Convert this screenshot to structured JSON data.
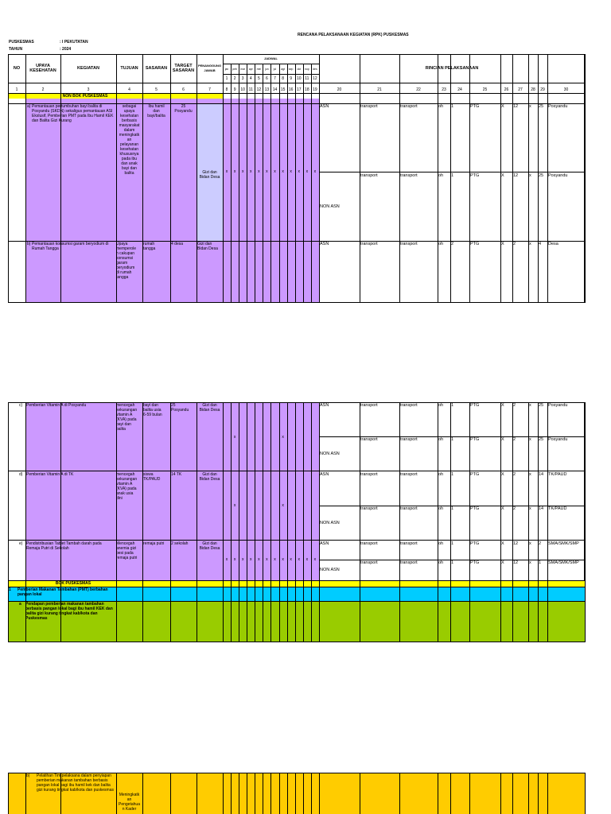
{
  "header": {
    "title": "RENCANA PELAKSANAAN KEGIATAN (RPK) PUSKESMAS",
    "puskesmas_label": "PUSKESMAS",
    "puskesmas_value": ": I PEKUTATAN",
    "tahun_label": "TAHUN",
    "tahun_value": ": 2024"
  },
  "columns": {
    "no": "NO",
    "upaya": "UPAYA KESEHATAN",
    "kegiatan": "KEGIATAN",
    "tujuan": "TUJUAN",
    "sasaran": "SASARAN",
    "target": "TARGET SASARAN",
    "pj": "PENANGGUNG JAWAB",
    "jadwal": "JADWAL",
    "rincian": "RINCIAN PELAKSANAAN",
    "months": [
      "jan",
      "peb",
      "mar",
      "apr",
      "mei",
      "jun",
      "jul",
      "agt",
      "sep",
      "okt",
      "nop",
      "des"
    ],
    "month_nums": [
      "1",
      "2",
      "3",
      "4",
      "5",
      "6",
      "7",
      "8",
      "9",
      "10",
      "11",
      "12"
    ],
    "index_left": [
      "1",
      "2",
      "3",
      "4",
      "5",
      "6",
      "7"
    ],
    "index_months": [
      "8",
      "9",
      "10",
      "11",
      "12",
      "13",
      "14",
      "15",
      "16",
      "17",
      "18",
      "19"
    ],
    "index_right": [
      "20",
      "21",
      "22",
      "23",
      "24",
      "25",
      "26",
      "27",
      "28",
      "29",
      "30"
    ]
  },
  "section_non_bok": "NON BOK PUSKESMAS",
  "section_bok": "BOK PUSKESMAS",
  "row_a": {
    "letter": "a)",
    "kegiatan": "Pemantauan pertumbuhan bayi balita di Posyandu (SKDN) sekaligus pemantauan ASI Ekslusif, Pemberian PMT pada Ibu Hamil KEK dan Balita Gizi Kurang",
    "tujuan": "sebagai\nupaya\nkesehatan\nberbasis\nmasyarakat\ndalam\nmeningkatk\nan\npelayanan\nkesehatan\nkhususnya\npada ibu\ndan anak\nbayi dan\nbalita",
    "sasaran": "Ibu hamil\ndan\nbayi/balita",
    "target": "25\nPosyandu",
    "pj": "Gizi dan\nBidan Desa",
    "marks": [
      "x",
      "x",
      "x",
      "x",
      "x",
      "x",
      "x",
      "x",
      "x",
      "x",
      "x",
      "x"
    ],
    "r1": {
      "c20": "ASN",
      "c21": "transport",
      "c22": "transport",
      "c23": "oh",
      "c24": "1",
      "c25": "PTG",
      "c26": "X",
      "c27": "12",
      "c28": "x",
      "c29": "25",
      "c30": "Posyandu"
    },
    "r2": {
      "c20": "NON ASN",
      "c21": "transport",
      "c22": "transport",
      "c23": "oh",
      "c24": "1",
      "c25": "PTG",
      "c26": "X",
      "c27": "12",
      "c28": "x",
      "c29": "25",
      "c30": "Posyandu"
    }
  },
  "row_b": {
    "letter": "b)",
    "kegiatan": "Pemantauan konsumsi garam beryodium di Rumah Tangga",
    "tujuan": "Upaya\nmemperole\nh cakupan\nkonsumsi\ngaram\nberyodium\ndi rumah\ntangga",
    "sasaran": "rumah\ntangga",
    "target": "4 desa",
    "pj": "Gizi dan\nBidan Desa",
    "r1": {
      "c20": "ASN",
      "c21": "transport",
      "c22": "transport",
      "c23": "oh",
      "c24": "2",
      "c25": "PTG",
      "c26": "X",
      "c27": "2",
      "c28": "x",
      "c29": "4",
      "c30": "Desa"
    }
  },
  "row_c": {
    "letter": "c)",
    "kegiatan": "Pemberian Vitamin A di Posyandu",
    "tujuan": "mencegah\nkekurangan\nvitamin A\n(KVA) pada\nbayi dan\nbalita",
    "sasaran": "bayi dan\nbalita usia\n6-59 bulan",
    "target": "25\nPosyandu",
    "pj": "Gizi dan\nBidan Desa",
    "marks": [
      "x",
      "x"
    ],
    "r1": {
      "c20": "ASN",
      "c21": "transport",
      "c22": "transport",
      "c23": "oh",
      "c24": "1",
      "c25": "PTG",
      "c26": "X",
      "c27": "2",
      "c28": "x",
      "c29": "25",
      "c30": "Posyandu"
    },
    "r2": {
      "c20": "NON ASN",
      "c21": "transport",
      "c22": "transport",
      "c23": "oh",
      "c24": "1",
      "c25": "PTG",
      "c26": "X",
      "c27": "2",
      "c28": "x",
      "c29": "25",
      "c30": "Posyandu"
    }
  },
  "row_d": {
    "letter": "d)",
    "kegiatan": "Pemberian Vitamin A di TK",
    "tujuan": "mencegah\nkekurangan\nvitamin A\n(KVA) pada\nanak usia\ndini",
    "sasaran": "siswa\nTK/PAUD",
    "target": "14 TK",
    "pj": "Gizi dan\nBidan Desa",
    "marks": [
      "x",
      "x"
    ],
    "r1": {
      "c20": "ASN",
      "c21": "transport",
      "c22": "transport",
      "c23": "oh",
      "c24": "1",
      "c25": "PTG",
      "c26": "X",
      "c27": "2",
      "c28": "x",
      "c29": "14",
      "c30": "TK/PAUD"
    },
    "r2": {
      "c20": "NON ASN",
      "c21": "transport",
      "c22": "transport",
      "c23": "oh",
      "c24": "1",
      "c25": "PTG",
      "c26": "X",
      "c27": "2",
      "c28": "x",
      "c29": "14",
      "c30": "TK/PAUD"
    }
  },
  "row_e": {
    "letter": "e)",
    "kegiatan": "Pendistribusian Tablet Tambah darah pada Remaja Putri di Sekolah",
    "tujuan": "Mencegah\nanemia gizi\nbesi pada\nremaja putri",
    "sasaran": "remaja putri",
    "target": "2 sekolah",
    "pj": "Gizi dan\nBidan Desa",
    "marks": [
      "x",
      "x",
      "x",
      "x",
      "x",
      "x",
      "x",
      "x",
      "x",
      "x",
      "x",
      "x"
    ],
    "r1": {
      "c20": "ASN",
      "c21": "transport",
      "c22": "transport",
      "c23": "oh",
      "c24": "1",
      "c25": "PTG",
      "c26": "X",
      "c27": "12",
      "c28": "x",
      "c29": "2",
      "c30": "SMA/SMK/SMP"
    },
    "r2": {
      "c20": "NON ASN",
      "c21": "transport",
      "c22": "transport",
      "c23": "oh",
      "c24": "1",
      "c25": "PTG",
      "c26": "X",
      "c27": "12",
      "c28": "x",
      "c29": "1",
      "c30": "SMA/SMK/SMP"
    }
  },
  "bok_row1": {
    "num": "1",
    "kegiatan": "Pemberian Makanan Tambahan (PMT) berbahan pangan lokal"
  },
  "bok_row_a": {
    "letter": "a",
    "kegiatan": "Pendapan pemberian makanan tambahan berbasis pangan lokal bagi ibu hamil KEK dan balita gizi kurang tingkat kab/kota dan Puskesmas"
  },
  "bok_row_b": {
    "letter": "b)",
    "kegiatan": "Pelatihan Tim pelaksana dalam penyiapan pemberian makanan tambahan berbasis pangan lokal bagi ibu hamil kek dan balita gizi kurang tingkat kab/kota dan puskesmas",
    "tujuan": "Meningkatk\nan\nPengetahua\nn Kader"
  }
}
